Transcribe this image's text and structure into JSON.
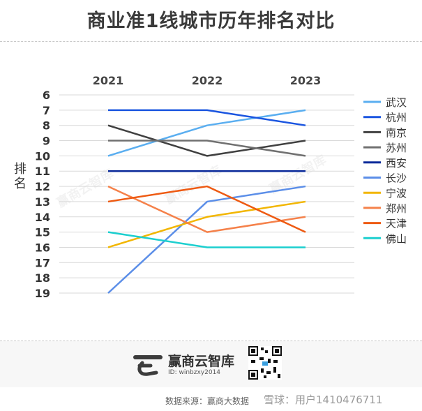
{
  "chart_data": {
    "type": "line",
    "title": "商业准1线城市历年排名对比",
    "ylabel": "排名",
    "xlabel": "",
    "categories": [
      "2021",
      "2022",
      "2023"
    ],
    "y_ticks": [
      "6",
      "7",
      "8",
      "9",
      "10",
      "11",
      "12",
      "13",
      "14",
      "15",
      "16",
      "17",
      "18",
      "19"
    ],
    "ylim": [
      6,
      19
    ],
    "y_inverted": true,
    "legend_position": "right",
    "series": [
      {
        "name": "武汉",
        "color": "#5aaef0",
        "values": [
          10,
          8,
          7
        ]
      },
      {
        "name": "杭州",
        "color": "#1a55e0",
        "values": [
          7,
          7,
          8
        ]
      },
      {
        "name": "南京",
        "color": "#404040",
        "values": [
          8,
          10,
          9
        ]
      },
      {
        "name": "苏州",
        "color": "#707070",
        "values": [
          9,
          9,
          10
        ]
      },
      {
        "name": "西安",
        "color": "#0a2a9a",
        "values": [
          11,
          11,
          11
        ]
      },
      {
        "name": "长沙",
        "color": "#5b8ee8",
        "values": [
          19,
          13,
          12
        ]
      },
      {
        "name": "宁波",
        "color": "#f2b600",
        "values": [
          16,
          14,
          13
        ]
      },
      {
        "name": "郑州",
        "color": "#f5814a",
        "values": [
          12,
          15,
          14
        ]
      },
      {
        "name": "天津",
        "color": "#ee5a12",
        "values": [
          13,
          12,
          15
        ]
      },
      {
        "name": "佛山",
        "color": "#1ccfcf",
        "values": [
          15,
          16,
          16
        ]
      }
    ]
  },
  "footer": {
    "brand_name": "赢商云智库",
    "brand_id": "ID: winbzxy2014",
    "source": "数据来源：赢商大数据",
    "user_watermark": "雪球：用户1410476711"
  },
  "watermark_text": "赢商云智库"
}
